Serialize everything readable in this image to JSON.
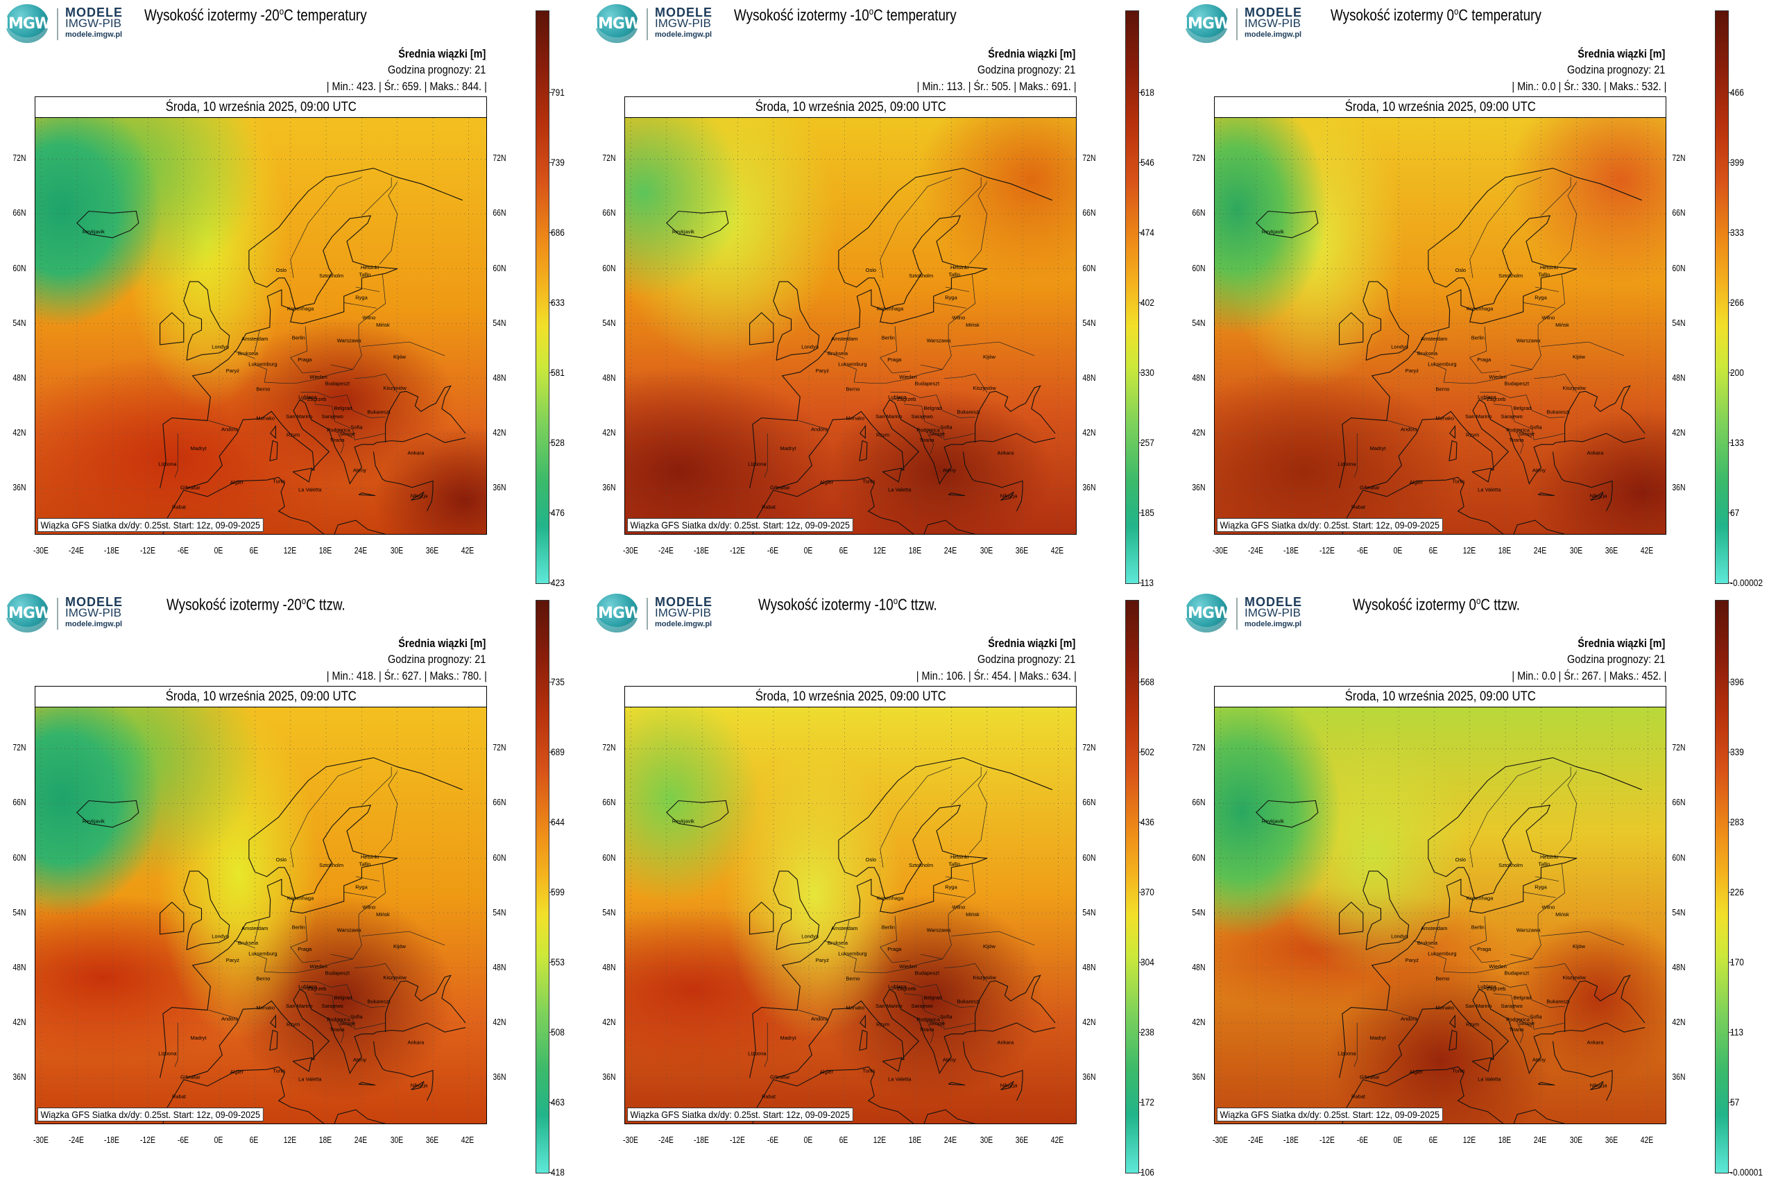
{
  "logo": {
    "mark": "IMGW",
    "line1": "MODELE",
    "line2": "IMGW-PIB",
    "line3": "modele.imgw.pl"
  },
  "common": {
    "info_line1": "Średnia wiązki [m]",
    "info_line2": "Godzina prognozy: 21",
    "date": "Środa, 10 września 2025, 09:00 UTC",
    "footer": "Wiązka GFS Siatka dx/dy: 0.25st. Start: 12z, 09-09-2025",
    "lat_labels": [
      "72N",
      "66N",
      "60N",
      "54N",
      "48N",
      "42N",
      "36N"
    ],
    "lon_labels": [
      "-30E",
      "-24E",
      "-18E",
      "-12E",
      "-6E",
      "0E",
      "6E",
      "12E",
      "18E",
      "24E",
      "30E",
      "36E",
      "42E"
    ],
    "cities": [
      "Oslo",
      "Sztokholm",
      "Helsinki",
      "Tallin",
      "Ryga",
      "Wilno",
      "Mińsk",
      "Kopenhaga",
      "Amsterdam",
      "Londyn",
      "Bruksela",
      "Luksemburg",
      "Paryż",
      "Berlin",
      "Warszawa",
      "Praga",
      "Kijów",
      "Berno",
      "Wiedeń",
      "Budapeszt",
      "Kiszyniów",
      "Lublana",
      "Zagrzeb",
      "Belgrad",
      "Bukareszt",
      "Sarajewo",
      "Podgorica",
      "Skopje",
      "Sofia",
      "Tirana",
      "Ateny",
      "Ankara",
      "Andora",
      "Monako",
      "San Marino",
      "Rzym",
      "Madryt",
      "Lizbona",
      "Gibraltar",
      "Algier",
      "Tunis",
      "La Valetta",
      "Rabat",
      "Nikozja",
      "Reykjavik"
    ]
  },
  "panels": [
    {
      "title_pre": "Wysokość izotermy -20",
      "title_sup": "o",
      "title_post": "C temperatury",
      "stats": "| Min.: 423. | Śr.: 659. | Maks.: 844. |",
      "colorbar_ticks": [
        "791",
        "739",
        "686",
        "633",
        "581",
        "528",
        "476",
        "423"
      ],
      "type": "t20"
    },
    {
      "title_pre": "Wysokość izotermy -10",
      "title_sup": "o",
      "title_post": "C temperatury",
      "stats": "| Min.: 113. | Śr.: 505. | Maks.: 691. |",
      "colorbar_ticks": [
        "618",
        "546",
        "474",
        "402",
        "330",
        "257",
        "185",
        "113"
      ],
      "type": "t10"
    },
    {
      "title_pre": "Wysokość izotermy 0",
      "title_sup": "o",
      "title_post": "C temperatury",
      "stats": "| Min.: 0.0 | Śr.: 330. | Maks.: 532. |",
      "colorbar_ticks": [
        "466",
        "399",
        "333",
        "266",
        "200",
        "133",
        "67",
        "-0.00002"
      ],
      "type": "t0"
    },
    {
      "title_pre": "Wysokość izotermy -20",
      "title_sup": "o",
      "title_post": "C ttzw.",
      "stats": "| Min.: 418. | Śr.: 627. | Maks.: 780. |",
      "colorbar_ticks": [
        "735",
        "689",
        "644",
        "599",
        "553",
        "508",
        "463",
        "418"
      ],
      "type": "w20"
    },
    {
      "title_pre": "Wysokość izotermy -10",
      "title_sup": "o",
      "title_post": "C ttzw.",
      "stats": "| Min.: 106. | Śr.: 454. | Maks.: 634. |",
      "colorbar_ticks": [
        "568",
        "502",
        "436",
        "370",
        "304",
        "238",
        "172",
        "106"
      ],
      "type": "w10"
    },
    {
      "title_pre": "Wysokość izotermy 0",
      "title_sup": "o",
      "title_post": "C ttzw.",
      "stats": "| Min.: 0.0 | Śr.: 267. | Maks.: 452. |",
      "colorbar_ticks": [
        "396",
        "339",
        "283",
        "226",
        "170",
        "113",
        "57",
        "-0.00001"
      ],
      "type": "w0"
    }
  ]
}
